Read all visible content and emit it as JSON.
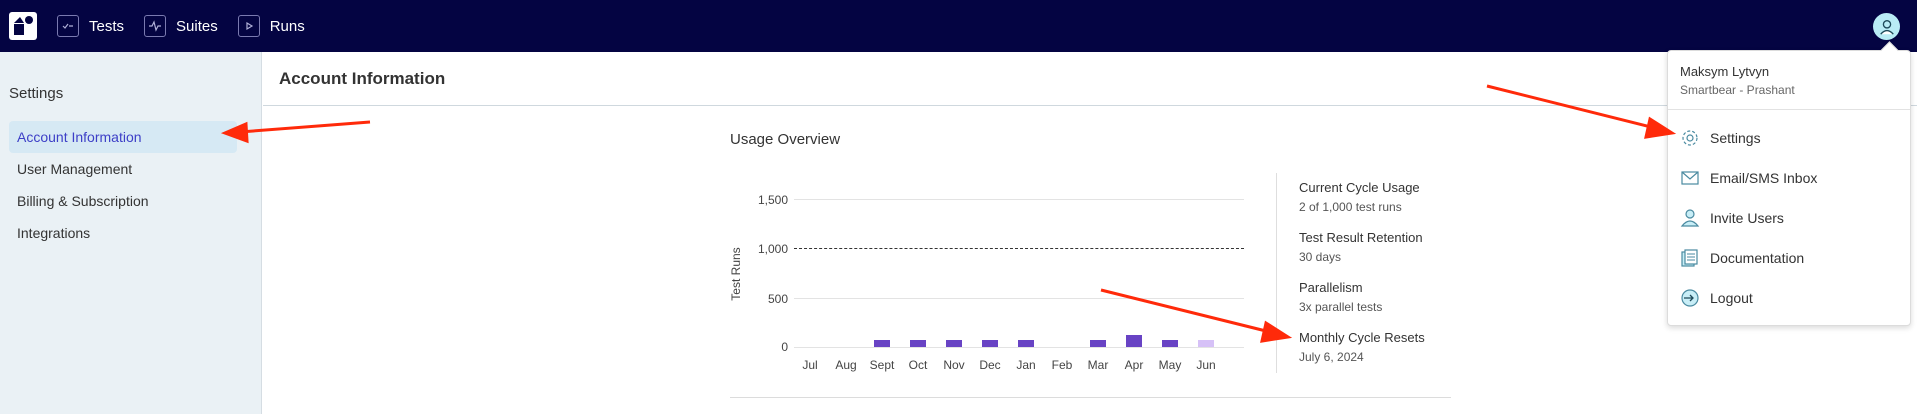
{
  "topbar": {
    "logo_alt": "app-logo",
    "nav": [
      {
        "label": "Tests",
        "icon": "checklist-icon"
      },
      {
        "label": "Suites",
        "icon": "pulse-icon"
      },
      {
        "label": "Runs",
        "icon": "play-stack-icon"
      }
    ],
    "avatar_icon": "user-avatar-icon"
  },
  "sidebar": {
    "title": "Settings",
    "items": [
      {
        "label": "Account Information",
        "active": true
      },
      {
        "label": "User Management",
        "active": false
      },
      {
        "label": "Billing & Subscription",
        "active": false
      },
      {
        "label": "Integrations",
        "active": false
      }
    ]
  },
  "main": {
    "title": "Account Information",
    "usage_title": "Usage Overview",
    "stats": [
      {
        "label": "Current Cycle Usage",
        "value": "2 of 1,000 test runs"
      },
      {
        "label": "Test Result Retention",
        "value": "30 days"
      },
      {
        "label": "Parallelism",
        "value": "3x parallel tests"
      },
      {
        "label": "Monthly Cycle Resets",
        "value": "July 6, 2024"
      }
    ]
  },
  "chart_data": {
    "type": "bar",
    "title": "Usage Overview",
    "xlabel": "",
    "ylabel": "Test Runs",
    "categories": [
      "Jul",
      "Aug",
      "Sept",
      "Oct",
      "Nov",
      "Dec",
      "Jan",
      "Feb",
      "Mar",
      "Apr",
      "May",
      "Jun"
    ],
    "values": [
      0,
      0,
      70,
      70,
      70,
      70,
      70,
      0,
      70,
      120,
      70,
      70
    ],
    "yticks": [
      "0",
      "500",
      "1,000",
      "1,500"
    ],
    "ylim": [
      0,
      1500
    ],
    "reference_line": {
      "value": 1000,
      "style": "dashed",
      "meaning": "plan limit"
    },
    "bar_color": "#6843c4",
    "current_bar_color": "#d6c1f7",
    "grid": true,
    "legend": null
  },
  "dropdown": {
    "name": "Maksym Lytvyn",
    "org": "Smartbear - Prashant",
    "items": [
      {
        "label": "Settings",
        "icon": "gear-icon"
      },
      {
        "label": "Email/SMS Inbox",
        "icon": "envelope-icon"
      },
      {
        "label": "Invite Users",
        "icon": "user-icon"
      },
      {
        "label": "Documentation",
        "icon": "document-icon"
      },
      {
        "label": "Logout",
        "icon": "logout-icon"
      }
    ]
  },
  "colors": {
    "topbar": "#040442",
    "accent": "#3d3fc7",
    "annotation_arrow": "#ff2a0a"
  }
}
